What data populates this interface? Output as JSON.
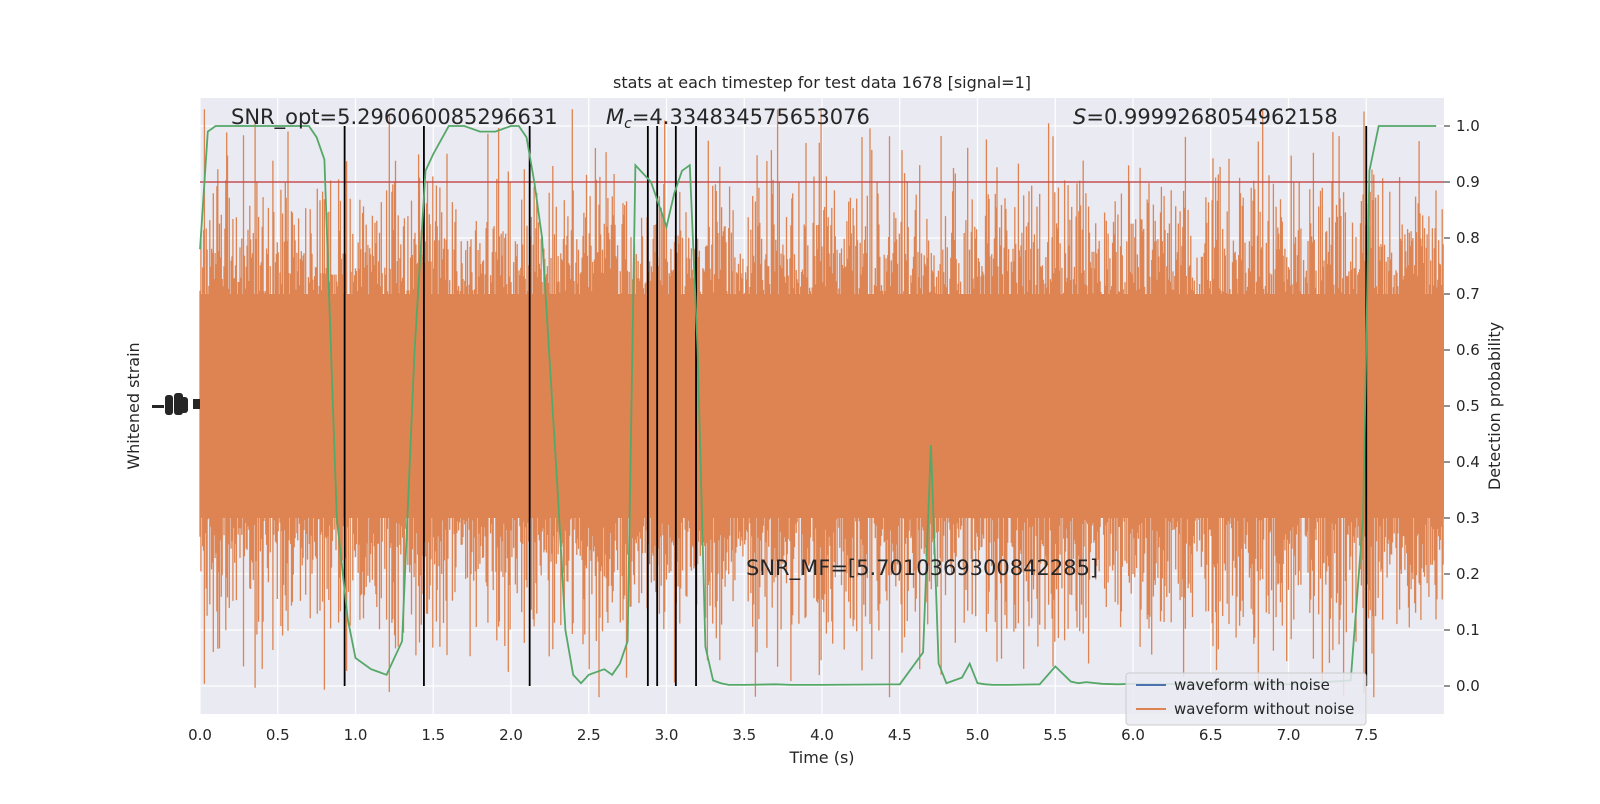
{
  "chart_data": {
    "type": "line",
    "title": "stats at each timestep for test data 1678 [signal=1]",
    "xlabel": "Time (s)",
    "ylabel_left": "Whitened strain",
    "ylabel_right": "Detection probability",
    "xlim": [
      0,
      8
    ],
    "ylim_right": [
      -0.05,
      1.05
    ],
    "x_ticks": [
      "0.0",
      "0.5",
      "1.0",
      "1.5",
      "2.0",
      "2.5",
      "3.0",
      "3.5",
      "4.0",
      "4.5",
      "5.0",
      "5.5",
      "6.0",
      "6.5",
      "7.0",
      "7.5"
    ],
    "y_ticks_right": [
      "0.0",
      "0.1",
      "0.2",
      "0.3",
      "0.4",
      "0.5",
      "0.6",
      "0.7",
      "0.8",
      "0.9",
      "1.0"
    ],
    "grid": true,
    "legend_position": "lower-right",
    "annotations": {
      "snr_opt": "SNR_opt=5.29606008529663​1",
      "mc": "=4.334834575653076",
      "mc_symbol": "M",
      "mc_sub": "c",
      "s_value": "=0.9999268054962158",
      "s_symbol": "S",
      "snr_mf": "SNR_MF=[5.7010369300842285]"
    },
    "series": [
      {
        "name": "waveform with noise",
        "color": "#4c72b0",
        "kind": "strain"
      },
      {
        "name": "waveform without noise",
        "color": "#dd8452",
        "kind": "strain"
      }
    ],
    "detection_probability": {
      "color": "#55a868",
      "x": [
        0.0,
        0.05,
        0.1,
        0.2,
        0.3,
        0.4,
        0.5,
        0.6,
        0.7,
        0.75,
        0.8,
        0.88,
        0.95,
        1.0,
        1.05,
        1.1,
        1.2,
        1.3,
        1.38,
        1.45,
        1.5,
        1.6,
        1.65,
        1.7,
        1.8,
        1.9,
        2.0,
        2.05,
        2.1,
        2.15,
        2.2,
        2.3,
        2.35,
        2.4,
        2.45,
        2.5,
        2.6,
        2.65,
        2.7,
        2.75,
        2.8,
        2.9,
        3.0,
        3.05,
        3.1,
        3.15,
        3.2,
        3.25,
        3.3,
        3.35,
        3.4,
        3.5,
        3.7,
        3.8,
        4.0,
        4.5,
        4.65,
        4.7,
        4.75,
        4.8,
        4.85,
        4.9,
        4.95,
        5.0,
        5.05,
        5.1,
        5.2,
        5.4,
        5.5,
        5.6,
        5.65,
        5.7,
        5.8,
        5.9,
        6.0,
        6.5,
        7.0,
        7.4,
        7.48,
        7.52,
        7.58,
        7.65,
        7.7,
        7.8,
        7.95
      ],
      "y": [
        0.78,
        0.99,
        1.0,
        1.0,
        1.0,
        1.0,
        1.0,
        1.0,
        1.0,
        0.98,
        0.94,
        0.3,
        0.12,
        0.05,
        0.04,
        0.03,
        0.02,
        0.08,
        0.6,
        0.92,
        0.95,
        1.0,
        1.0,
        1.0,
        0.99,
        0.99,
        1.0,
        1.0,
        0.98,
        0.9,
        0.8,
        0.35,
        0.1,
        0.02,
        0.005,
        0.02,
        0.03,
        0.02,
        0.04,
        0.08,
        0.93,
        0.9,
        0.82,
        0.88,
        0.92,
        0.93,
        0.6,
        0.07,
        0.01,
        0.005,
        0.002,
        0.002,
        0.003,
        0.002,
        0.002,
        0.003,
        0.06,
        0.43,
        0.04,
        0.005,
        0.01,
        0.015,
        0.04,
        0.005,
        0.003,
        0.002,
        0.002,
        0.003,
        0.035,
        0.008,
        0.005,
        0.007,
        0.004,
        0.003,
        0.004,
        0.003,
        0.003,
        0.01,
        0.3,
        0.92,
        1.0,
        1.0,
        1.0,
        1.0,
        1.0
      ]
    },
    "threshold": {
      "y": 0.9,
      "color": "#c44e52"
    },
    "vertical_lines_x": [
      0.93,
      1.44,
      2.12,
      2.88,
      2.94,
      3.06,
      3.19,
      7.5
    ]
  }
}
